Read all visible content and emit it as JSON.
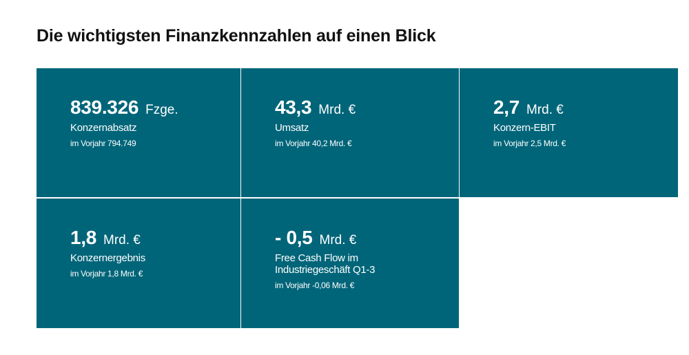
{
  "page": {
    "title": "Die wichtigsten Finanzkennzahlen auf einen Blick"
  },
  "colors": {
    "tile_background": "#006579",
    "tile_text": "#ffffff",
    "title_text": "#111111"
  },
  "kpis": [
    {
      "value": "839.326",
      "unit": "Fzge.",
      "label": "Konzernabsatz",
      "previous": "im Vorjahr 794.749"
    },
    {
      "value": "43,3",
      "unit": "Mrd. €",
      "label": "Umsatz",
      "previous": "im Vorjahr 40,2 Mrd. €"
    },
    {
      "value": "2,7",
      "unit": "Mrd. €",
      "label": "Konzern-EBIT",
      "previous": "im Vorjahr 2,5 Mrd. €"
    },
    {
      "value": "1,8",
      "unit": "Mrd. €",
      "label": "Konzernergebnis",
      "previous": "im Vorjahr 1,8 Mrd. €"
    },
    {
      "value": "- 0,5",
      "unit": "Mrd. €",
      "label": "Free Cash Flow im\nIndustriegeschäft Q1-3",
      "previous": "im Vorjahr -0,06 Mrd. €"
    }
  ]
}
